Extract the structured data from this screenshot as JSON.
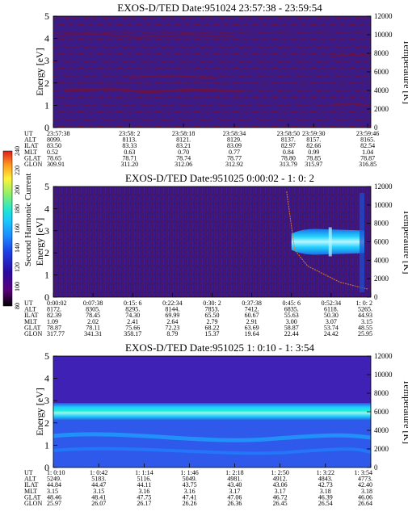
{
  "colors": {
    "background_navy": "#3b1b86",
    "contour_dark": "#7a1032",
    "cyan_band": "#22d3ff",
    "cyan_core": "#a8f2ff",
    "blue_band": "#1f5be0",
    "gap_white": "#ffffff",
    "gap_edge": "#000000"
  },
  "colorbar": {
    "label": "Second Harmonic Current",
    "ticks": [
      "80",
      "100",
      "120",
      "140",
      "160",
      "180",
      "200",
      "220",
      "240"
    ],
    "stops": [
      "#000000",
      "#5a007a",
      "#2a0aa0",
      "#1b40e6",
      "#1b8bff",
      "#19c8ff",
      "#1fe6d2",
      "#8af06a",
      "#fff23a",
      "#ff9a1f",
      "#e01b1b"
    ]
  },
  "chart_data": [
    {
      "type": "heatmap",
      "title": "EXOS-D/TED   Date:951024   23:57:38 - 23:59:54",
      "ylabel": "Energy [eV]",
      "y2label": "Temperature [K]",
      "ylim": [
        0,
        5
      ],
      "y2lim": [
        0,
        12000
      ],
      "yticks": [
        "0",
        "1",
        "2",
        "3",
        "4",
        "5"
      ],
      "y2ticks": [
        "0",
        "2000",
        "4000",
        "6000",
        "8000",
        "10000",
        "12000"
      ],
      "data_gap": {
        "from": "23:58:50",
        "to": "23:59:30",
        "energy_min": 0.45
      },
      "row_labels": [
        "UT",
        "ALT",
        "ILAT",
        "MLT",
        "GLAT",
        "GLON"
      ],
      "columns": [
        {
          "x": 0.0,
          "vals": [
            "23:57:38",
            "8099.",
            "83.50",
            "0.52",
            "78.65",
            "309.91"
          ]
        },
        {
          "x": 0.24,
          "vals": [
            "23:58: 2",
            "8113.",
            "83.33",
            "0.63",
            "78.71",
            "311.20"
          ]
        },
        {
          "x": 0.41,
          "vals": [
            "23:58:18",
            "8121.",
            "83.21",
            "0.70",
            "78.74",
            "312.06"
          ]
        },
        {
          "x": 0.57,
          "vals": [
            "23:58:34",
            "8129.",
            "83.09",
            "0.77",
            "78.77",
            "312.92"
          ]
        },
        {
          "x": 0.74,
          "vals": [
            "23:58:50",
            "8137.",
            "82.97",
            "0.84",
            "78.80",
            "313.79"
          ]
        },
        {
          "x": 0.82,
          "vals": [
            "23:59:30",
            "8157.",
            "82.66",
            "0.99",
            "78.85",
            "315.97"
          ]
        },
        {
          "x": 0.99,
          "vals": [
            "23:59:46",
            "8165.",
            "82.54",
            "1.04",
            "78.87",
            "316.85"
          ]
        }
      ]
    },
    {
      "type": "heatmap",
      "title": "EXOS-D/TED   Date:951025   0:00:02 - 1: 0: 2",
      "ylabel": "Energy [eV]",
      "y2label": "Temperature [K]",
      "ylim": [
        0,
        5
      ],
      "y2lim": [
        0,
        12000
      ],
      "yticks": [
        "0",
        "1",
        "2",
        "3",
        "4",
        "5"
      ],
      "y2ticks": [
        "0",
        "2000",
        "4000",
        "6000",
        "8000",
        "10000",
        "12000"
      ],
      "emission_band": {
        "start": "0:45: 6",
        "energy_center": 2.5
      },
      "row_labels": [
        "UT",
        "ALT",
        "ILAT",
        "MLT",
        "GLAT",
        "GLON"
      ],
      "columns": [
        {
          "x": 0.0,
          "vals": [
            "0:00:02",
            "8172.",
            "82.39",
            "1.09",
            "78.87",
            "317.77"
          ]
        },
        {
          "x": 0.125,
          "vals": [
            "0:07:38",
            "8305.",
            "78.45",
            "2.02",
            "78.11",
            "341.31"
          ]
        },
        {
          "x": 0.25,
          "vals": [
            "0:15: 6",
            "8295.",
            "74.30",
            "2.41",
            "75.66",
            "358.17"
          ]
        },
        {
          "x": 0.375,
          "vals": [
            "0:22:34",
            "8144.",
            "69.99",
            "2.64",
            "72.23",
            "8.79"
          ]
        },
        {
          "x": 0.5,
          "vals": [
            "0:30: 2",
            "7853.",
            "65.50",
            "2.79",
            "68.22",
            "15.37"
          ]
        },
        {
          "x": 0.625,
          "vals": [
            "0:37:38",
            "7412.",
            "60.67",
            "2.91",
            "63.69",
            "19.64"
          ]
        },
        {
          "x": 0.75,
          "vals": [
            "0:45: 6",
            "6835.",
            "55.63",
            "3.00",
            "58.87",
            "22.44"
          ]
        },
        {
          "x": 0.875,
          "vals": [
            "0:52:34",
            "6118.",
            "50.30",
            "3.07",
            "53.74",
            "24.42"
          ]
        },
        {
          "x": 1.0,
          "vals": [
            "1: 0: 2",
            "5265.",
            "44.93",
            "3.15",
            "48.55",
            "25.95"
          ]
        }
      ]
    },
    {
      "type": "heatmap",
      "title": "EXOS-D/TED   Date:951025   1: 0:10 - 1: 3:54",
      "ylabel": "Energy [eV]",
      "y2label": "Temperature [K]",
      "ylim": [
        0,
        5
      ],
      "y2lim": [
        0,
        12000
      ],
      "yticks": [
        "0",
        "1",
        "2",
        "3",
        "4",
        "5"
      ],
      "y2ticks": [
        "0",
        "2000",
        "4000",
        "6000",
        "8000",
        "10000",
        "12000"
      ],
      "emission_band": {
        "energy_center": 2.5
      },
      "row_labels": [
        "UT",
        "ALT",
        "ILAT",
        "MLT",
        "GLAT",
        "GLON"
      ],
      "columns": [
        {
          "x": 0.0,
          "vals": [
            "1: 0:10",
            "5249.",
            "44.84",
            "3.15",
            "48.46",
            "25.97"
          ]
        },
        {
          "x": 0.143,
          "vals": [
            "1: 0:42",
            "5183.",
            "44.47",
            "3.15",
            "48.41",
            "26.07"
          ]
        },
        {
          "x": 0.286,
          "vals": [
            "1: 1:14",
            "5116.",
            "44.11",
            "3.16",
            "47.75",
            "26.17"
          ]
        },
        {
          "x": 0.429,
          "vals": [
            "1: 1:46",
            "5049.",
            "43.75",
            "3.16",
            "47.41",
            "26.26"
          ]
        },
        {
          "x": 0.571,
          "vals": [
            "1: 2:18",
            "4981.",
            "43.40",
            "3.17",
            "47.06",
            "26.36"
          ]
        },
        {
          "x": 0.714,
          "vals": [
            "1: 2:50",
            "4912.",
            "43.06",
            "3.17",
            "46.72",
            "26.45"
          ]
        },
        {
          "x": 0.857,
          "vals": [
            "1: 3:22",
            "4843.",
            "42.73",
            "3.18",
            "46.39",
            "26.54"
          ]
        },
        {
          "x": 1.0,
          "vals": [
            "1: 3:54",
            "4773.",
            "42.40",
            "3.18",
            "46.06",
            "26.64"
          ]
        }
      ]
    }
  ]
}
